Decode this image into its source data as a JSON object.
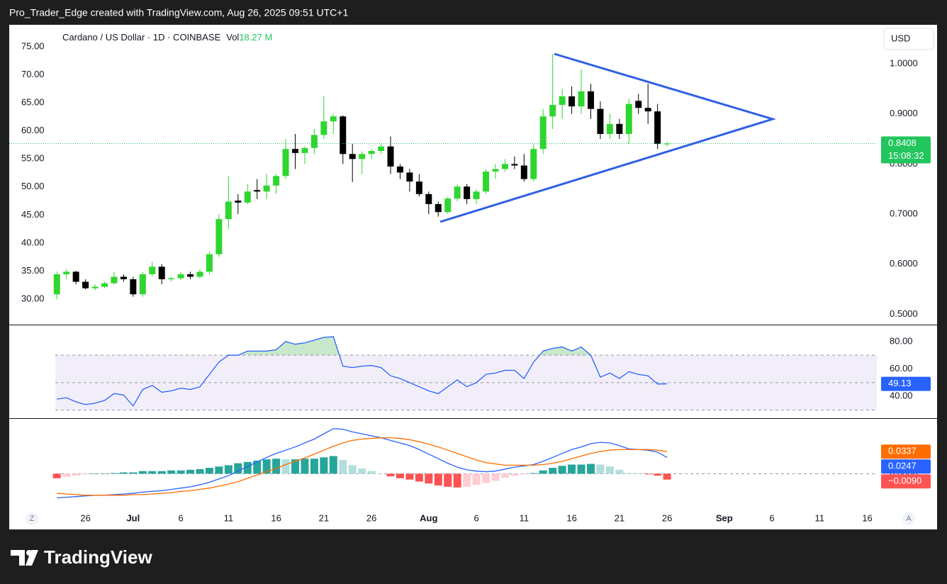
{
  "header": {
    "caption": "Pro_Trader_Edge created with TradingView.com, Aug 26, 2025 09:51 UTC+1"
  },
  "footer": {
    "brand": "TradingView"
  },
  "axis_buttons": {
    "left": "Z",
    "right": "A"
  },
  "chart_data": [
    {
      "type": "candlestick",
      "title": "Cardano / US Dollar · 1D · COINBASE",
      "volume_title": "Vol",
      "volume": "18.27 M",
      "currency": "USD",
      "x": [
        "2025-06-23",
        "2025-06-24",
        "2025-06-25",
        "2025-06-26",
        "2025-06-27",
        "2025-06-28",
        "2025-06-29",
        "2025-06-30",
        "2025-07-01",
        "2025-07-02",
        "2025-07-03",
        "2025-07-04",
        "2025-07-05",
        "2025-07-06",
        "2025-07-07",
        "2025-07-08",
        "2025-07-09",
        "2025-07-10",
        "2025-07-11",
        "2025-07-12",
        "2025-07-13",
        "2025-07-14",
        "2025-07-15",
        "2025-07-16",
        "2025-07-17",
        "2025-07-18",
        "2025-07-19",
        "2025-07-20",
        "2025-07-21",
        "2025-07-22",
        "2025-07-23",
        "2025-07-24",
        "2025-07-25",
        "2025-07-26",
        "2025-07-27",
        "2025-07-28",
        "2025-07-29",
        "2025-07-30",
        "2025-07-31",
        "2025-08-01",
        "2025-08-02",
        "2025-08-03",
        "2025-08-04",
        "2025-08-05",
        "2025-08-06",
        "2025-08-07",
        "2025-08-08",
        "2025-08-09",
        "2025-08-10",
        "2025-08-11",
        "2025-08-12",
        "2025-08-13",
        "2025-08-14",
        "2025-08-15",
        "2025-08-16",
        "2025-08-17",
        "2025-08-18",
        "2025-08-19",
        "2025-08-20",
        "2025-08-21",
        "2025-08-22",
        "2025-08-23",
        "2025-08-24",
        "2025-08-25",
        "2025-08-26"
      ],
      "open": [
        0.54,
        0.58,
        0.585,
        0.565,
        0.552,
        0.555,
        0.562,
        0.575,
        0.57,
        0.54,
        0.58,
        0.595,
        0.57,
        0.572,
        0.58,
        0.575,
        0.585,
        0.62,
        0.69,
        0.727,
        0.723,
        0.748,
        0.745,
        0.757,
        0.776,
        0.83,
        0.822,
        0.832,
        0.858,
        0.885,
        0.895,
        0.82,
        0.81,
        0.82,
        0.826,
        0.835,
        0.795,
        0.783,
        0.765,
        0.74,
        0.72,
        0.704,
        0.731,
        0.755,
        0.73,
        0.745,
        0.785,
        0.79,
        0.8,
        0.797,
        0.77,
        0.83,
        0.895,
        0.918,
        0.935,
        0.915,
        0.945,
        0.91,
        0.86,
        0.88,
        0.86,
        0.926,
        0.912,
        0.905,
        0.84
      ],
      "high": [
        0.585,
        0.59,
        0.587,
        0.57,
        0.56,
        0.565,
        0.585,
        0.58,
        0.575,
        0.585,
        0.605,
        0.6,
        0.575,
        0.585,
        0.585,
        0.59,
        0.625,
        0.7,
        0.776,
        0.74,
        0.76,
        0.77,
        0.78,
        0.78,
        0.85,
        0.86,
        0.835,
        0.87,
        0.935,
        0.9,
        0.897,
        0.84,
        0.825,
        0.83,
        0.84,
        0.855,
        0.8,
        0.79,
        0.78,
        0.745,
        0.725,
        0.735,
        0.76,
        0.76,
        0.75,
        0.79,
        0.8,
        0.81,
        0.815,
        0.82,
        0.84,
        0.91,
        1.02,
        0.95,
        0.955,
        0.989,
        0.96,
        0.925,
        0.9,
        0.89,
        0.93,
        0.94,
        0.96,
        0.92,
        0.845
      ],
      "low": [
        0.53,
        0.57,
        0.56,
        0.55,
        0.548,
        0.552,
        0.56,
        0.565,
        0.535,
        0.535,
        0.575,
        0.56,
        0.565,
        0.568,
        0.57,
        0.572,
        0.58,
        0.615,
        0.67,
        0.7,
        0.72,
        0.73,
        0.73,
        0.74,
        0.77,
        0.79,
        0.8,
        0.82,
        0.85,
        0.86,
        0.8,
        0.764,
        0.78,
        0.81,
        0.82,
        0.78,
        0.77,
        0.745,
        0.735,
        0.7,
        0.695,
        0.7,
        0.725,
        0.72,
        0.72,
        0.74,
        0.77,
        0.785,
        0.79,
        0.765,
        0.765,
        0.82,
        0.87,
        0.89,
        0.9,
        0.9,
        0.89,
        0.85,
        0.85,
        0.85,
        0.84,
        0.9,
        0.88,
        0.83,
        0.835
      ],
      "close": [
        0.58,
        0.585,
        0.565,
        0.552,
        0.555,
        0.562,
        0.575,
        0.57,
        0.54,
        0.58,
        0.595,
        0.57,
        0.572,
        0.58,
        0.575,
        0.585,
        0.62,
        0.69,
        0.725,
        0.723,
        0.745,
        0.745,
        0.757,
        0.776,
        0.83,
        0.822,
        0.832,
        0.858,
        0.885,
        0.895,
        0.82,
        0.81,
        0.82,
        0.826,
        0.835,
        0.795,
        0.783,
        0.765,
        0.74,
        0.72,
        0.704,
        0.731,
        0.755,
        0.73,
        0.745,
        0.785,
        0.79,
        0.8,
        0.797,
        0.77,
        0.83,
        0.895,
        0.918,
        0.935,
        0.915,
        0.945,
        0.91,
        0.86,
        0.88,
        0.86,
        0.92,
        0.912,
        0.905,
        0.84,
        0.8408
      ],
      "up_color": "#2fd62f",
      "down_color": "#000000",
      "xlim": [
        "2025-06-18",
        "2025-09-17"
      ],
      "xticks": [
        {
          "value": "2025-06-26",
          "label": "26"
        },
        {
          "value": "2025-07-01",
          "label": "Jul"
        },
        {
          "value": "2025-07-06",
          "label": "6"
        },
        {
          "value": "2025-07-11",
          "label": "11"
        },
        {
          "value": "2025-07-16",
          "label": "16"
        },
        {
          "value": "2025-07-21",
          "label": "21"
        },
        {
          "value": "2025-07-26",
          "label": "26"
        },
        {
          "value": "2025-08-01",
          "label": "Aug"
        },
        {
          "value": "2025-08-06",
          "label": "6"
        },
        {
          "value": "2025-08-11",
          "label": "11"
        },
        {
          "value": "2025-08-16",
          "label": "16"
        },
        {
          "value": "2025-08-21",
          "label": "21"
        },
        {
          "value": "2025-08-26",
          "label": "26"
        },
        {
          "value": "2025-09-01",
          "label": "Sep"
        },
        {
          "value": "2025-09-06",
          "label": "6"
        },
        {
          "value": "2025-09-11",
          "label": "11"
        },
        {
          "value": "2025-09-16",
          "label": "16"
        }
      ],
      "ylim": [
        0.4795,
        1.0778
      ],
      "yticks": [
        {
          "value": 0.5,
          "label": "0.5000"
        },
        {
          "value": 0.6,
          "label": "0.6000"
        },
        {
          "value": 0.7,
          "label": "0.7000"
        },
        {
          "value": 0.8,
          "label": "0.8000"
        },
        {
          "value": 0.9,
          "label": "0.9000"
        },
        {
          "value": 1.0,
          "label": "1.0000"
        }
      ],
      "y2lim": [
        25.45,
        78.92
      ],
      "y2ticks": [
        {
          "value": 30,
          "label": "30.00"
        },
        {
          "value": 35,
          "label": "35.00"
        },
        {
          "value": 40,
          "label": "40.00"
        },
        {
          "value": 45,
          "label": "45.00"
        },
        {
          "value": 50,
          "label": "50.00"
        },
        {
          "value": 55,
          "label": "55.00"
        },
        {
          "value": 60,
          "label": "60.00"
        },
        {
          "value": 65,
          "label": "65.00"
        },
        {
          "value": 70,
          "label": "70.00"
        },
        {
          "value": 75,
          "label": "75.00"
        }
      ],
      "last_price": 0.8408,
      "last_price_color": "#22c55e",
      "countdown": "15:08:32"
    },
    {
      "type": "line",
      "values": [
        38,
        39,
        36,
        34,
        35,
        37,
        42,
        41,
        33,
        45,
        48,
        43,
        44,
        46,
        45,
        47,
        56,
        65,
        70,
        70,
        73,
        73,
        73,
        74,
        80,
        78,
        79,
        81,
        83,
        83.5,
        62,
        61,
        62,
        62.5,
        61,
        55,
        53,
        50,
        47,
        44,
        42,
        47,
        52,
        47,
        50,
        56,
        57,
        59,
        59,
        53,
        65,
        73,
        75,
        76,
        73,
        76,
        70,
        54,
        57,
        53,
        58,
        56,
        55,
        49,
        49.13
      ],
      "color": "#2962ff",
      "ylim": [
        24.1,
        91.8
      ],
      "yticks": [
        {
          "value": 40,
          "label": "40.00"
        },
        {
          "value": 60,
          "label": "60.00"
        },
        {
          "value": 80,
          "label": "80.00"
        }
      ],
      "bands": [
        30,
        50,
        70
      ],
      "band_color": "#7e57c2",
      "overbought_color": "#4caf50"
    },
    {
      "type": "macd",
      "series": [
        {
          "color": "#2962ff",
          "values": [
            -0.037,
            -0.036,
            -0.035,
            -0.034,
            -0.033,
            -0.033,
            -0.032,
            -0.031,
            -0.03,
            -0.028,
            -0.027,
            -0.026,
            -0.024,
            -0.022,
            -0.02,
            -0.017,
            -0.013,
            -0.008,
            -0.003,
            0.004,
            0.011,
            0.018,
            0.025,
            0.031,
            0.036,
            0.041,
            0.047,
            0.053,
            0.061,
            0.069,
            0.068,
            0.064,
            0.061,
            0.058,
            0.055,
            0.051,
            0.047,
            0.043,
            0.037,
            0.03,
            0.023,
            0.016,
            0.01,
            0.006,
            0.004,
            0.003,
            0.004,
            0.007,
            0.01,
            0.012,
            0.014,
            0.019,
            0.025,
            0.031,
            0.037,
            0.041,
            0.046,
            0.048,
            0.047,
            0.043,
            0.038,
            0.037,
            0.036,
            0.033,
            0.0247
          ]
        },
        {
          "color": "#ff6d00",
          "values": [
            -0.03,
            -0.031,
            -0.032,
            -0.033,
            -0.033,
            -0.033,
            -0.033,
            -0.033,
            -0.032,
            -0.032,
            -0.031,
            -0.03,
            -0.029,
            -0.027,
            -0.026,
            -0.024,
            -0.022,
            -0.019,
            -0.016,
            -0.012,
            -0.007,
            -0.002,
            0.003,
            0.008,
            0.014,
            0.019,
            0.024,
            0.03,
            0.036,
            0.042,
            0.047,
            0.051,
            0.053,
            0.054,
            0.055,
            0.055,
            0.054,
            0.052,
            0.049,
            0.045,
            0.041,
            0.036,
            0.031,
            0.026,
            0.021,
            0.017,
            0.015,
            0.013,
            0.013,
            0.013,
            0.013,
            0.014,
            0.016,
            0.019,
            0.023,
            0.027,
            0.031,
            0.034,
            0.036,
            0.037,
            0.037,
            0.037,
            0.037,
            0.036,
            0.0337
          ]
        }
      ],
      "histogram": {
        "values": [
          -0.007,
          -0.005,
          -0.003,
          -0.001,
          0,
          0,
          0.001,
          0.002,
          0.002,
          0.004,
          0.004,
          0.004,
          0.005,
          0.005,
          0.006,
          0.007,
          0.009,
          0.011,
          0.013,
          0.016,
          0.018,
          0.02,
          0.022,
          0.023,
          0.022,
          0.022,
          0.023,
          0.023,
          0.025,
          0.027,
          0.021,
          0.013,
          0.008,
          0.004,
          0,
          -0.004,
          -0.007,
          -0.009,
          -0.012,
          -0.015,
          -0.018,
          -0.02,
          -0.021,
          -0.02,
          -0.017,
          -0.014,
          -0.011,
          -0.006,
          -0.003,
          -0.001,
          0.001,
          0.005,
          0.009,
          0.012,
          0.014,
          0.014,
          0.015,
          0.014,
          0.011,
          0.006,
          0.001,
          0,
          -0.001,
          -0.003,
          -0.009
        ],
        "value_labels": {
          "64": "−0.0090"
        },
        "colors": {
          "up_strong": "#26a69a",
          "up_weak": "#b2dfdb",
          "down_weak": "#ffcdd2",
          "down_strong": "#ff5252"
        }
      },
      "ylim": [
        -0.0527,
        0.0839
      ],
      "yticks": [
        {
          "value": 0,
          "label": "0.0000"
        }
      ]
    }
  ]
}
